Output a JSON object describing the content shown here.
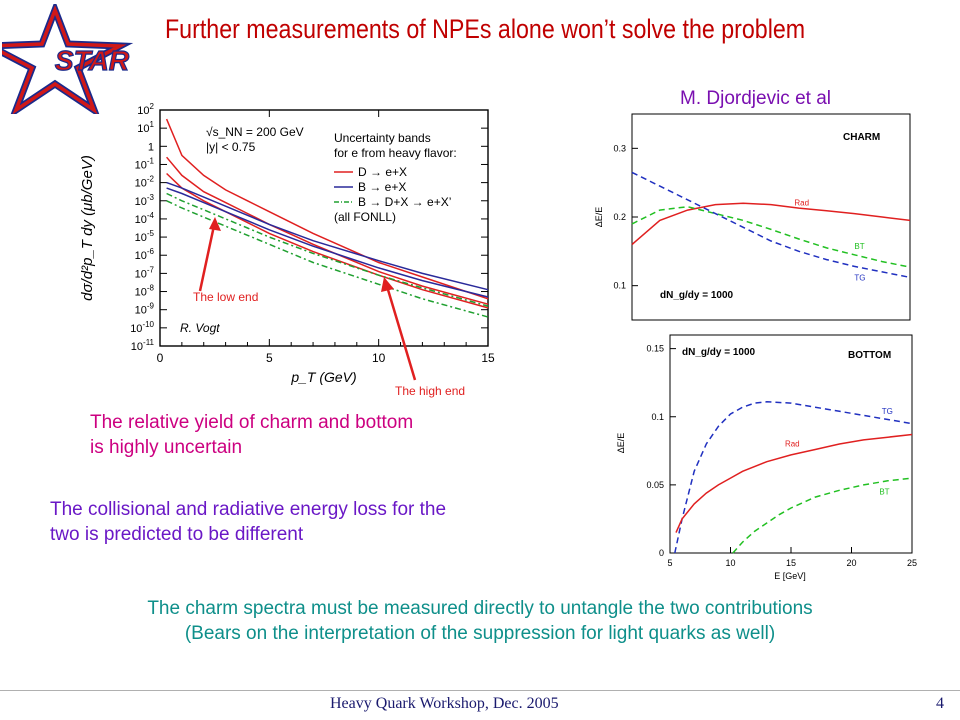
{
  "slide": {
    "title": "Further measurements of NPEs alone won’t solve the problem",
    "logo_text": "STAR",
    "author": "M. Djordjevic et al",
    "yield_text": [
      "The relative yield of charm and bottom",
      "is highly uncertain"
    ],
    "eloss_text": [
      "The collisional and radiative energy loss for the",
      "two is predicted to be different"
    ],
    "conclusion": [
      "The charm spectra must be measured directly to untangle the two contributions",
      "(Bears on the interpretation of the suppression for light quarks as well)"
    ],
    "footer": "Heavy Quark Workshop, Dec. 2005",
    "page_number": "4",
    "colors": {
      "title": "#c00000",
      "yield": "#cc0080",
      "eloss": "#6a18c6",
      "conclusion": "#0e8f8a"
    }
  },
  "chart_data": [
    {
      "type": "line",
      "title": "",
      "xlabel": "p_T (GeV)",
      "ylabel": "dσ/d²p_T dy (μb/GeV)",
      "x_ticks": [
        "0",
        "5",
        "10",
        "15"
      ],
      "y_ticks": [
        "10^2",
        "10^1",
        "1",
        "10^-1",
        "10^-2",
        "10^-3",
        "10^-4",
        "10^-5",
        "10^-6",
        "10^-7",
        "10^-8",
        "10^-9",
        "10^-10",
        "10^-11"
      ],
      "xlim": [
        0,
        15
      ],
      "ylim_log10": [
        -11,
        2
      ],
      "header_lines": [
        "√s_NN = 200 GeV",
        "|y| < 0.75"
      ],
      "legend_title": [
        "Uncertainty bands",
        "for e from heavy flavor:"
      ],
      "legend": [
        {
          "label": "D → e+X",
          "color": "#e02020",
          "style": "solid"
        },
        {
          "label": "B → e+X",
          "color": "#2a2a9a",
          "style": "solid"
        },
        {
          "label": "B → D+X → e+X’",
          "color": "#20a030",
          "style": "dashdot"
        },
        {
          "label": "(all FONLL)",
          "color": "#000000",
          "style": "none"
        }
      ],
      "credit": "R. Vogt",
      "annotations": [
        "The low end",
        "The high end"
      ],
      "series": [
        {
          "color": "#e02020",
          "dash": "",
          "x": [
            0.3,
            1,
            2,
            3,
            4,
            5,
            7,
            10,
            12,
            15
          ],
          "y": [
            1.5,
            -0.5,
            -1.6,
            -2.4,
            -3.0,
            -3.6,
            -4.8,
            -6.4,
            -7.2,
            -8.4
          ]
        },
        {
          "color": "#e02020",
          "dash": "",
          "x": [
            0.3,
            1,
            2,
            3,
            4,
            5,
            7,
            10,
            12,
            15
          ],
          "y": [
            -1.5,
            -2.3,
            -3.0,
            -3.6,
            -4.2,
            -4.8,
            -5.8,
            -7.1,
            -7.9,
            -8.9
          ]
        },
        {
          "color": "#e02020",
          "dash": "",
          "x": [
            0.3,
            1,
            2,
            3,
            4,
            5,
            7,
            10,
            12,
            15
          ],
          "y": [
            -0.6,
            -1.6,
            -2.5,
            -3.1,
            -3.7,
            -4.3,
            -5.4,
            -6.9,
            -7.7,
            -8.7
          ]
        },
        {
          "color": "#2a2a9a",
          "dash": "",
          "x": [
            0.3,
            1,
            2,
            3,
            4,
            5,
            7,
            10,
            12,
            15
          ],
          "y": [
            -2.0,
            -2.3,
            -2.8,
            -3.3,
            -3.8,
            -4.3,
            -5.2,
            -6.3,
            -7.0,
            -7.9
          ]
        },
        {
          "color": "#2a2a9a",
          "dash": "",
          "x": [
            0.3,
            1,
            2,
            3,
            4,
            5,
            7,
            10,
            12,
            15
          ],
          "y": [
            -2.3,
            -2.6,
            -3.1,
            -3.6,
            -4.1,
            -4.6,
            -5.5,
            -6.7,
            -7.4,
            -8.3
          ]
        },
        {
          "color": "#20a030",
          "dash": "6 3 2 3",
          "x": [
            0.3,
            1,
            2,
            3,
            4,
            5,
            7,
            10,
            12,
            15
          ],
          "y": [
            -2.6,
            -3.0,
            -3.5,
            -4.0,
            -4.5,
            -5.0,
            -5.9,
            -7.1,
            -7.8,
            -8.8
          ]
        },
        {
          "color": "#20a030",
          "dash": "6 3 2 3",
          "x": [
            0.3,
            1,
            2,
            3,
            4,
            5,
            7,
            10,
            12,
            15
          ],
          "y": [
            -3.0,
            -3.4,
            -3.9,
            -4.4,
            -4.9,
            -5.4,
            -6.4,
            -7.6,
            -8.4,
            -9.4
          ]
        }
      ]
    },
    {
      "type": "line",
      "title": "CHARM",
      "xlabel": "",
      "ylabel": "ΔE/E",
      "y_ticks": [
        "0.1",
        "0.2",
        "0.3"
      ],
      "xlim": [
        5,
        25
      ],
      "ylim": [
        0.05,
        0.35
      ],
      "inset_label": "dN_g/dy = 1000",
      "series": [
        {
          "name": "Rad",
          "color": "#e02020",
          "dash": "",
          "x": [
            5,
            7,
            9,
            11,
            13,
            15,
            17,
            19,
            21,
            23,
            25
          ],
          "y": [
            0.16,
            0.195,
            0.21,
            0.218,
            0.22,
            0.218,
            0.213,
            0.209,
            0.205,
            0.2,
            0.195
          ]
        },
        {
          "name": "BT",
          "color": "#22c022",
          "dash": "6 4",
          "x": [
            5,
            7,
            9,
            11,
            13,
            15,
            17,
            19,
            21,
            23,
            25
          ],
          "y": [
            0.19,
            0.21,
            0.215,
            0.205,
            0.195,
            0.182,
            0.168,
            0.155,
            0.145,
            0.135,
            0.127
          ]
        },
        {
          "name": "TG",
          "color": "#2030c0",
          "dash": "6 4",
          "x": [
            5,
            7,
            9,
            11,
            13,
            15,
            17,
            19,
            21,
            23,
            25
          ],
          "y": [
            0.265,
            0.245,
            0.225,
            0.205,
            0.185,
            0.165,
            0.15,
            0.138,
            0.128,
            0.12,
            0.112
          ]
        }
      ]
    },
    {
      "type": "line",
      "title": "BOTTOM",
      "xlabel": "E [GeV]",
      "ylabel": "ΔE/E",
      "x_ticks": [
        "5",
        "10",
        "15",
        "20",
        "25"
      ],
      "y_ticks": [
        "0",
        "0.05",
        "0.1",
        "0.15"
      ],
      "xlim": [
        5,
        25
      ],
      "ylim": [
        0,
        0.16
      ],
      "inset_label": "dN_g/dy = 1000",
      "series": [
        {
          "name": "TG",
          "color": "#2030c0",
          "dash": "6 4",
          "x": [
            5.4,
            6,
            7,
            8,
            9,
            10,
            11,
            12,
            13,
            15,
            17,
            19,
            21,
            23,
            25
          ],
          "y": [
            0,
            0.025,
            0.06,
            0.08,
            0.093,
            0.102,
            0.107,
            0.11,
            0.111,
            0.11,
            0.107,
            0.104,
            0.101,
            0.098,
            0.095
          ]
        },
        {
          "name": "Rad",
          "color": "#e02020",
          "dash": "",
          "x": [
            5.5,
            6,
            7,
            8,
            9,
            10,
            11,
            13,
            15,
            17,
            19,
            21,
            23,
            25
          ],
          "y": [
            0.015,
            0.025,
            0.036,
            0.044,
            0.05,
            0.055,
            0.06,
            0.067,
            0.072,
            0.076,
            0.08,
            0.083,
            0.085,
            0.087
          ]
        },
        {
          "name": "BT",
          "color": "#22c022",
          "dash": "6 4",
          "x": [
            10.2,
            11,
            12,
            13,
            14,
            15,
            17,
            19,
            21,
            23,
            25
          ],
          "y": [
            0,
            0.008,
            0.016,
            0.022,
            0.028,
            0.033,
            0.041,
            0.046,
            0.05,
            0.053,
            0.055
          ]
        }
      ]
    }
  ]
}
